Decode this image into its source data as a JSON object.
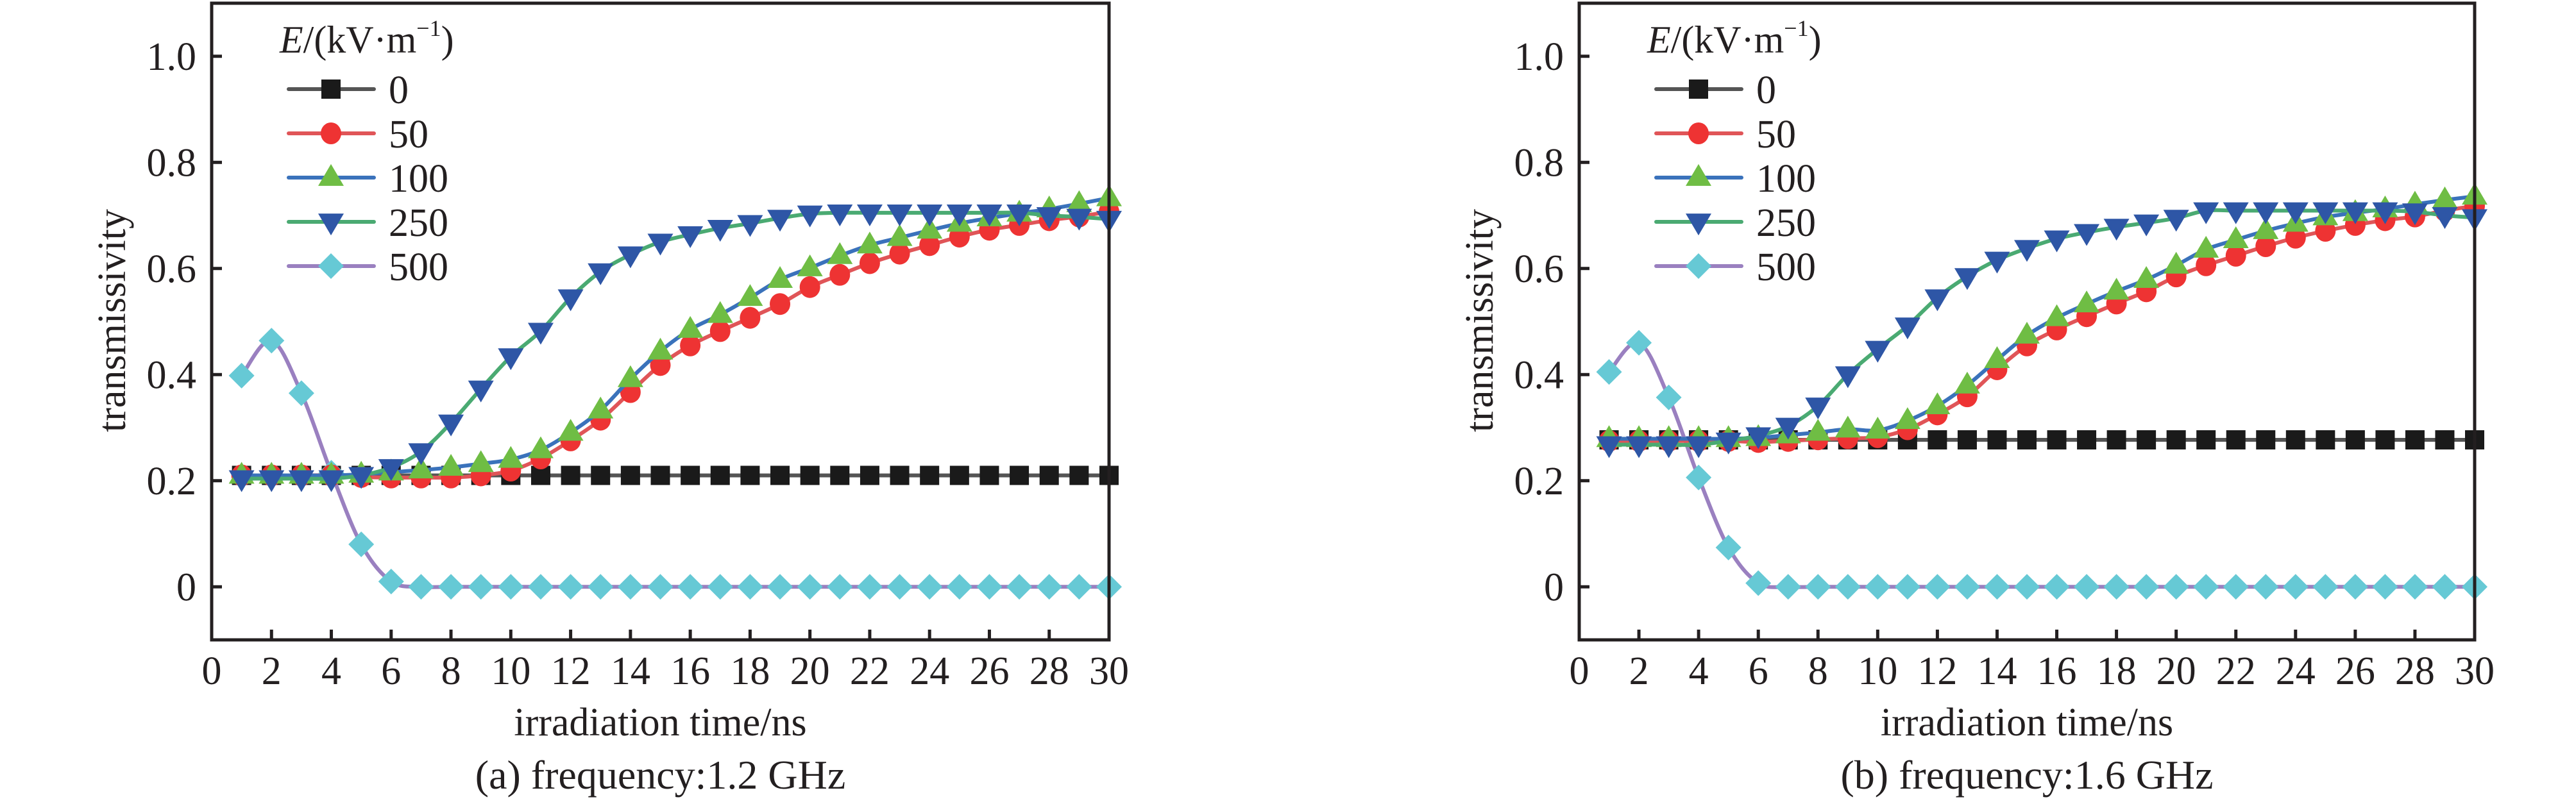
{
  "figure": {
    "colors": {
      "axis": "#231f20",
      "series_0_line": "#555555",
      "series_0_marker": "#1a1a1a",
      "series_50_line": "#e05558",
      "series_50_marker": "#ee3333",
      "series_100_line": "#3a72bb",
      "series_100_marker": "#6fbd44",
      "series_250_line": "#4aaa72",
      "series_250_marker": "#2e56a6",
      "series_500_line": "#9a80c0",
      "series_500_marker": "#66c9d5"
    }
  },
  "chart_data": [
    {
      "type": "line",
      "panel": "a",
      "caption": "(a) frequency:1.2 GHz",
      "xlabel": "irradiation time/ns",
      "ylabel": "transmissivity",
      "xlim": [
        0,
        30
      ],
      "ylim": [
        -0.1,
        1.1
      ],
      "xticks": [
        "0",
        "2",
        "4",
        "6",
        "8",
        "10",
        "12",
        "14",
        "16",
        "18",
        "20",
        "22",
        "24",
        "26",
        "28",
        "30"
      ],
      "yticks": [
        "0",
        "0.2",
        "0.4",
        "0.6",
        "0.8",
        "1.0"
      ],
      "ytick_values": [
        0,
        0.2,
        0.4,
        0.6,
        0.8,
        1.0
      ],
      "grid": false,
      "legend": {
        "placement": "top-left",
        "title_italic": "E",
        "title_rest": "/(kV·m",
        "title_sup": "−1",
        "title_close": ")"
      },
      "x": [
        1,
        2,
        3,
        4,
        5,
        6,
        7,
        8,
        9,
        10,
        11,
        12,
        13,
        14,
        15,
        16,
        17,
        18,
        19,
        20,
        21,
        22,
        23,
        24,
        25,
        26,
        27,
        28,
        29,
        30
      ],
      "series": [
        {
          "name": "0",
          "marker": "square",
          "values": [
            0.21,
            0.21,
            0.21,
            0.21,
            0.21,
            0.21,
            0.21,
            0.21,
            0.21,
            0.21,
            0.21,
            0.21,
            0.21,
            0.21,
            0.21,
            0.21,
            0.21,
            0.21,
            0.21,
            0.21,
            0.21,
            0.21,
            0.21,
            0.21,
            0.21,
            0.21,
            0.21,
            0.21,
            0.21,
            0.21
          ]
        },
        {
          "name": "50",
          "marker": "circle",
          "values": [
            0.21,
            0.21,
            0.21,
            0.21,
            0.207,
            0.206,
            0.206,
            0.206,
            0.21,
            0.219,
            0.242,
            0.276,
            0.315,
            0.367,
            0.418,
            0.455,
            0.482,
            0.507,
            0.533,
            0.565,
            0.588,
            0.61,
            0.628,
            0.644,
            0.66,
            0.673,
            0.682,
            0.691,
            0.698,
            0.707
          ]
        },
        {
          "name": "100",
          "marker": "triangle-up",
          "values": [
            0.21,
            0.21,
            0.21,
            0.21,
            0.212,
            0.216,
            0.22,
            0.225,
            0.232,
            0.24,
            0.258,
            0.291,
            0.333,
            0.392,
            0.444,
            0.485,
            0.513,
            0.545,
            0.579,
            0.601,
            0.624,
            0.644,
            0.658,
            0.672,
            0.685,
            0.695,
            0.704,
            0.712,
            0.722,
            0.733
          ]
        },
        {
          "name": "250",
          "marker": "triangle-down",
          "values": [
            0.204,
            0.204,
            0.204,
            0.204,
            0.21,
            0.225,
            0.255,
            0.309,
            0.373,
            0.434,
            0.482,
            0.545,
            0.594,
            0.626,
            0.65,
            0.664,
            0.676,
            0.685,
            0.695,
            0.703,
            0.705,
            0.705,
            0.705,
            0.705,
            0.705,
            0.705,
            0.705,
            0.7,
            0.697,
            0.693
          ]
        },
        {
          "name": "500",
          "marker": "diamond",
          "values": [
            0.398,
            0.464,
            0.365,
            0.215,
            0.08,
            0.01,
            0,
            0,
            0,
            0,
            0,
            0,
            0,
            0,
            0,
            0,
            0,
            0,
            0,
            0,
            0,
            0,
            0,
            0,
            0,
            0,
            0,
            0,
            0,
            0
          ]
        }
      ]
    },
    {
      "type": "line",
      "panel": "b",
      "caption": "(b) frequency:1.6 GHz",
      "xlabel": "irradiation time/ns",
      "ylabel": "transmissivity",
      "xlim": [
        0,
        30
      ],
      "ylim": [
        -0.1,
        1.1
      ],
      "xticks": [
        "0",
        "2",
        "4",
        "6",
        "8",
        "10",
        "12",
        "14",
        "16",
        "18",
        "20",
        "22",
        "24",
        "26",
        "28",
        "30"
      ],
      "yticks": [
        "0",
        "0.2",
        "0.4",
        "0.6",
        "0.8",
        "1.0"
      ],
      "ytick_values": [
        0,
        0.2,
        0.4,
        0.6,
        0.8,
        1.0
      ],
      "grid": false,
      "legend": {
        "placement": "top-left",
        "title_italic": "E",
        "title_rest": "/(kV·m",
        "title_sup": "−1",
        "title_close": ")"
      },
      "x": [
        1,
        2,
        3,
        4,
        5,
        6,
        7,
        8,
        9,
        10,
        11,
        12,
        13,
        14,
        15,
        16,
        17,
        18,
        19,
        20,
        21,
        22,
        23,
        24,
        25,
        26,
        27,
        28,
        29,
        30
      ],
      "series": [
        {
          "name": "0",
          "marker": "square",
          "values": [
            0.277,
            0.277,
            0.277,
            0.277,
            0.277,
            0.277,
            0.277,
            0.277,
            0.277,
            0.277,
            0.277,
            0.277,
            0.277,
            0.277,
            0.277,
            0.277,
            0.277,
            0.277,
            0.277,
            0.277,
            0.277,
            0.277,
            0.277,
            0.277,
            0.277,
            0.277,
            0.277,
            0.277,
            0.277,
            0.277
          ]
        },
        {
          "name": "50",
          "marker": "circle",
          "values": [
            0.275,
            0.275,
            0.275,
            0.275,
            0.275,
            0.273,
            0.275,
            0.278,
            0.28,
            0.282,
            0.297,
            0.325,
            0.359,
            0.41,
            0.455,
            0.485,
            0.51,
            0.534,
            0.557,
            0.585,
            0.606,
            0.624,
            0.642,
            0.658,
            0.671,
            0.682,
            0.691,
            0.698,
            0.709,
            0.718
          ]
        },
        {
          "name": "100",
          "marker": "triangle-up",
          "values": [
            0.279,
            0.279,
            0.279,
            0.279,
            0.279,
            0.281,
            0.286,
            0.291,
            0.297,
            0.295,
            0.313,
            0.341,
            0.38,
            0.428,
            0.474,
            0.507,
            0.533,
            0.557,
            0.579,
            0.606,
            0.636,
            0.654,
            0.671,
            0.685,
            0.697,
            0.705,
            0.712,
            0.721,
            0.729,
            0.736
          ]
        },
        {
          "name": "250",
          "marker": "triangle-down",
          "values": [
            0.268,
            0.268,
            0.268,
            0.268,
            0.275,
            0.285,
            0.303,
            0.341,
            0.4,
            0.448,
            0.492,
            0.545,
            0.585,
            0.616,
            0.638,
            0.656,
            0.668,
            0.678,
            0.686,
            0.695,
            0.709,
            0.709,
            0.709,
            0.709,
            0.709,
            0.709,
            0.709,
            0.707,
            0.7,
            0.696
          ]
        },
        {
          "name": "500",
          "marker": "diamond",
          "values": [
            0.405,
            0.46,
            0.357,
            0.206,
            0.074,
            0.007,
            0,
            0,
            0,
            0,
            0,
            0,
            0,
            0,
            0,
            0,
            0,
            0,
            0,
            0,
            0,
            0,
            0,
            0,
            0,
            0,
            0,
            0,
            0,
            0
          ]
        }
      ]
    }
  ]
}
